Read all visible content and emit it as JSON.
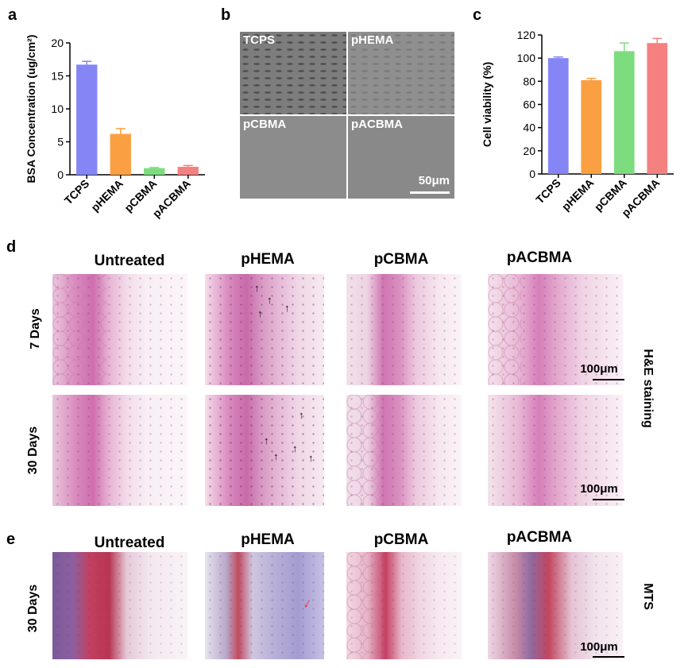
{
  "panels": {
    "a": "a",
    "b": "b",
    "c": "c",
    "d": "d",
    "e": "e"
  },
  "chart_a": {
    "chart_data": {
      "type": "bar",
      "categories": [
        "TCPS",
        "pHEMA",
        "pCBMA",
        "pACBMA"
      ],
      "values": [
        16.7,
        6.2,
        1.0,
        1.2
      ],
      "errors": [
        0.5,
        0.8,
        0.1,
        0.2
      ],
      "ylabel": "BSA Concentration (ug/cm²)",
      "ylim": [
        0,
        20
      ],
      "yticks": [
        "0",
        "5",
        "10",
        "15",
        "20"
      ],
      "colors": [
        "#8585f5",
        "#fba042",
        "#7ddc7d",
        "#f58080"
      ]
    }
  },
  "chart_c": {
    "chart_data": {
      "type": "bar",
      "categories": [
        "TCPS",
        "pHEMA",
        "pCBMA",
        "pACBMA"
      ],
      "values": [
        100,
        81,
        106,
        113
      ],
      "errors": [
        1,
        1.5,
        7,
        4
      ],
      "ylabel": "Cell viability (%)",
      "ylim": [
        0,
        120
      ],
      "yticks": [
        "0",
        "20",
        "40",
        "60",
        "80",
        "100",
        "120"
      ],
      "colors": [
        "#8585f5",
        "#fba042",
        "#7ddc7d",
        "#f58080"
      ]
    }
  },
  "panel_b": {
    "tiles": [
      "TCPS",
      "pHEMA",
      "pCBMA",
      "pACBMA"
    ],
    "scale": "50μm"
  },
  "panel_d": {
    "columns": [
      "Untreated",
      "pHEMA",
      "pCBMA",
      "pACBMA"
    ],
    "rows": [
      "7 Days",
      "30 Days"
    ],
    "side": "H&E staining",
    "scale": "100μm"
  },
  "panel_e": {
    "columns": [
      "Untreated",
      "pHEMA",
      "pCBMA",
      "pACBMA"
    ],
    "row": "30 Days",
    "side": "MTS",
    "scale": "100μm"
  }
}
